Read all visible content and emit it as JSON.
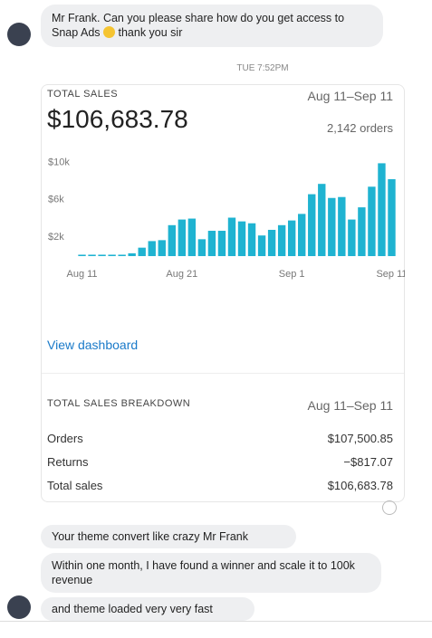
{
  "messages_top": [
    {
      "text": "Mr Frank. Can you please share how do you get access to Snap Ads",
      "text_after": "thank you sir"
    }
  ],
  "timestamp": "TUE 7:52PM",
  "card": {
    "title": "TOTAL SALES",
    "date_range": "Aug 11–Sep 11",
    "total": "$106,683.78",
    "orders": "2,142 orders",
    "chart_data": {
      "type": "bar",
      "categories": [
        "Aug 11",
        null,
        null,
        null,
        null,
        null,
        null,
        null,
        null,
        null,
        "Aug 21",
        null,
        null,
        null,
        null,
        null,
        null,
        null,
        null,
        null,
        null,
        "Sep 1",
        null,
        null,
        null,
        null,
        null,
        null,
        null,
        null,
        null,
        "Sep 11"
      ],
      "values": [
        150,
        150,
        150,
        150,
        150,
        300,
        900,
        1600,
        1700,
        3300,
        3900,
        4000,
        1800,
        2700,
        2700,
        4100,
        3700,
        3500,
        2200,
        2800,
        3300,
        3800,
        4500,
        6600,
        7700,
        6200,
        6300,
        3900,
        5200,
        7400,
        9900,
        8200
      ],
      "color": "#1fb3d1",
      "ylim": [
        0,
        11000
      ],
      "yticks": [
        {
          "value": 2000,
          "label": "$2k"
        },
        {
          "value": 6000,
          "label": "$6k"
        },
        {
          "value": 10000,
          "label": "$10k"
        }
      ],
      "grid": false
    },
    "link": "View dashboard",
    "breakdown": {
      "title": "TOTAL SALES BREAKDOWN",
      "date_range": "Aug 11–Sep 11",
      "rows": [
        [
          "Orders",
          "$107,500.85"
        ],
        [
          "Returns",
          "−$817.07"
        ],
        [
          "Total sales",
          "$106,683.78"
        ]
      ]
    }
  },
  "messages_bottom": [
    "Your theme convert like crazy Mr Frank",
    "Within one month, I have found a winner and scale it to 100k revenue",
    "and theme loaded very very fast"
  ]
}
